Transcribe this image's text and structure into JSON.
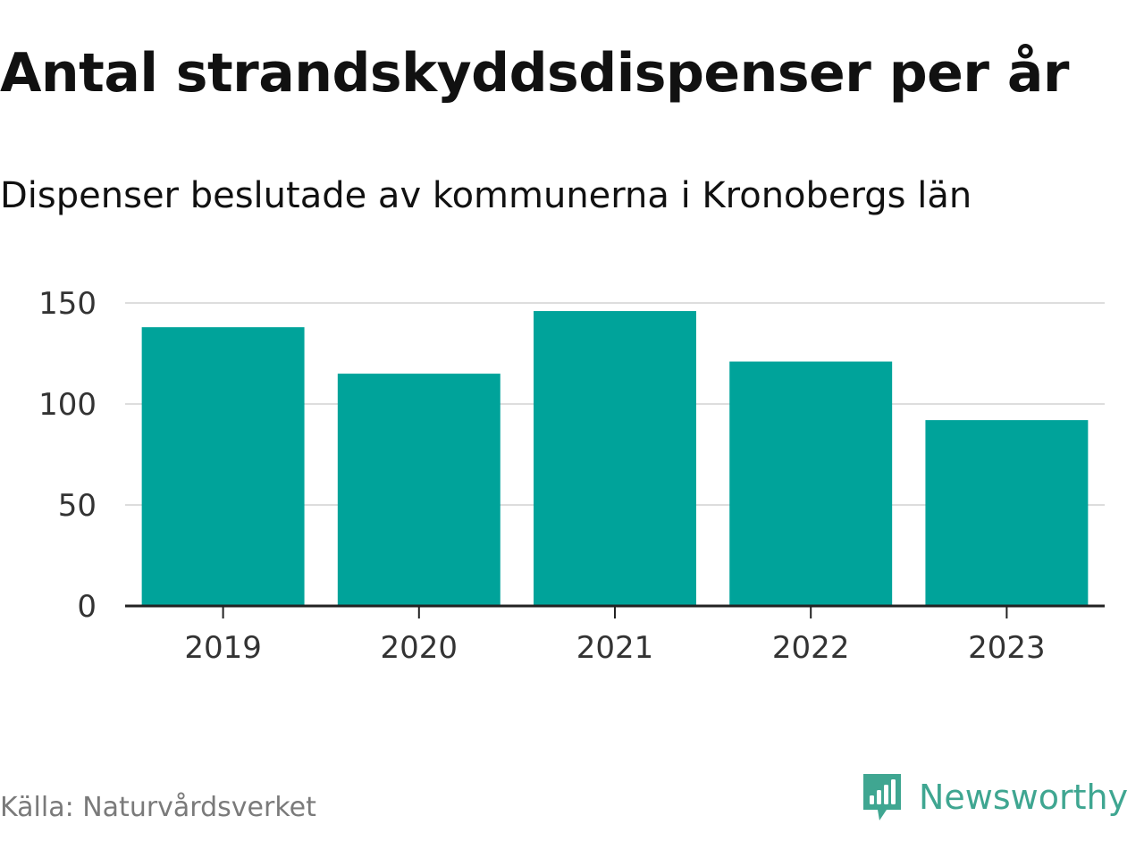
{
  "title": "Antal strandskyddsdispenser per år",
  "subtitle": "Dispenser beslutade av kommunerna i Kronobergs län",
  "source": "Källa: Naturvårdsverket",
  "brand": {
    "name": "Newsworthy",
    "icon": "newsworthy-logo-icon",
    "color": "#3fa691"
  },
  "colors": {
    "bar": "#00a39a",
    "grid": "#dddddd",
    "axis": "#222222"
  },
  "chart_data": {
    "type": "bar",
    "title": "Antal strandskyddsdispenser per år",
    "subtitle": "Dispenser beslutade av kommunerna i Kronobergs län",
    "categories": [
      "2019",
      "2020",
      "2021",
      "2022",
      "2023"
    ],
    "values": [
      138,
      115,
      146,
      121,
      92
    ],
    "xlabel": "",
    "ylabel": "",
    "ylim": [
      0,
      150
    ],
    "yticks": [
      0,
      50,
      100,
      150
    ],
    "ytick_labels": [
      "0",
      "50",
      "100",
      "150"
    ],
    "grid": true,
    "legend": "none"
  }
}
